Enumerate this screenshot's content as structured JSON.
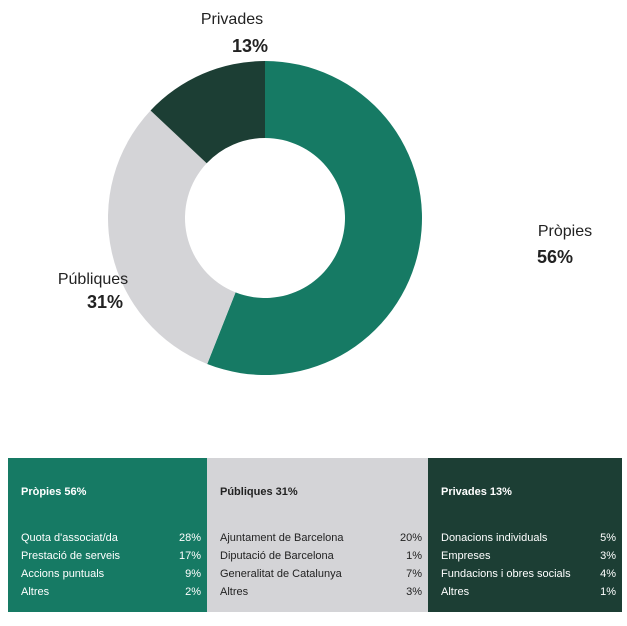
{
  "chart_data": {
    "type": "donut",
    "categories": [
      "Pròpies",
      "Públiques",
      "Privades"
    ],
    "values": [
      56,
      31,
      13
    ],
    "value_labels": [
      "56%",
      "31%",
      "13%"
    ],
    "colors": [
      "#167a64",
      "#d4d4d7",
      "#1c3e34"
    ]
  },
  "table": {
    "panels": [
      {
        "title": "Pròpies 56%",
        "rows": [
          [
            "Quota d'associat/da",
            "28%"
          ],
          [
            "Prestació de serveis",
            "17%"
          ],
          [
            "Accions puntuals",
            "9%"
          ],
          [
            "Altres",
            "2%"
          ]
        ]
      },
      {
        "title": "Públiques 31%",
        "rows": [
          [
            "Ajuntament de Barcelona",
            "20%"
          ],
          [
            "Diputació de Barcelona",
            "1%"
          ],
          [
            "Generalitat de Catalunya",
            "7%"
          ],
          [
            "Altres",
            "3%"
          ]
        ]
      },
      {
        "title": "Privades 13%",
        "rows": [
          [
            "Donacions individuals",
            "5%"
          ],
          [
            "Empreses",
            "3%"
          ],
          [
            "Fundacions i obres socials",
            "4%"
          ],
          [
            "Altres",
            "1%"
          ]
        ]
      }
    ]
  }
}
